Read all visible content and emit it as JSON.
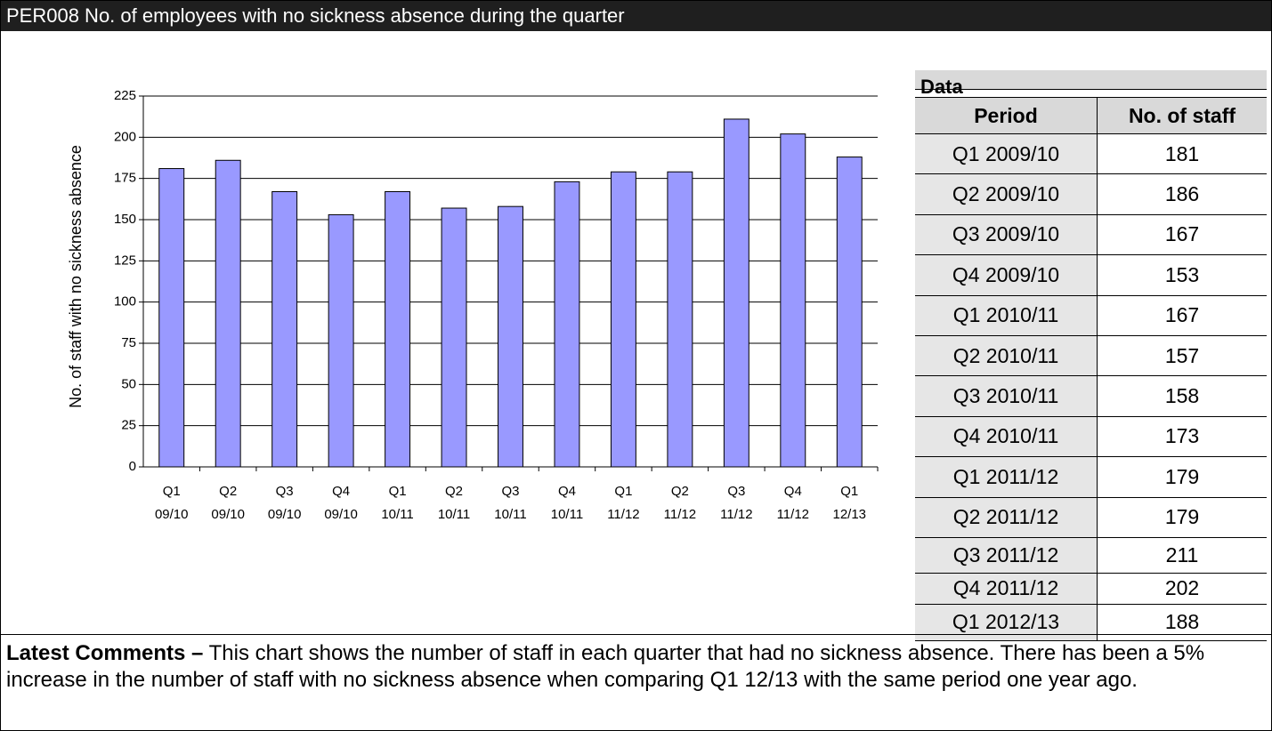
{
  "header": {
    "title": "PER008 No. of employees with no sickness absence during the quarter"
  },
  "chart_data": {
    "type": "bar",
    "y_label": "No. of staff with no sickness absence",
    "categories": [
      "Q1 09/10",
      "Q2 09/10",
      "Q3 09/10",
      "Q4 09/10",
      "Q1 10/11",
      "Q2 10/11",
      "Q3 10/11",
      "Q4 10/11",
      "Q1 11/12",
      "Q2 11/12",
      "Q3 11/12",
      "Q4 11/12",
      "Q1 12/13"
    ],
    "values": [
      181,
      186,
      167,
      153,
      167,
      157,
      158,
      173,
      179,
      179,
      211,
      202,
      188
    ],
    "color": "#9999ff",
    "ylim": [
      0,
      225
    ],
    "yticks": [
      0,
      25,
      50,
      75,
      100,
      125,
      150,
      175,
      200,
      225
    ],
    "grid": true
  },
  "table": {
    "title": "Data",
    "columns": [
      "Period",
      "No. of staff"
    ],
    "rows": [
      [
        "Q1 2009/10",
        "181"
      ],
      [
        "Q2 2009/10",
        "186"
      ],
      [
        "Q3 2009/10",
        "167"
      ],
      [
        "Q4 2009/10",
        "153"
      ],
      [
        "Q1 2010/11",
        "167"
      ],
      [
        "Q2 2010/11",
        "157"
      ],
      [
        "Q3 2010/11",
        "158"
      ],
      [
        "Q4 2010/11",
        "173"
      ],
      [
        "Q1 2011/12",
        "179"
      ],
      [
        "Q2 2011/12",
        "179"
      ],
      [
        "Q3 2011/12",
        "211"
      ],
      [
        "Q4 2011/12",
        "202"
      ],
      [
        "Q1 2012/13",
        "188"
      ]
    ]
  },
  "comments": {
    "label": "Latest Comments –",
    "text": " This chart shows the number of staff in each quarter that had no sickness absence.  There has been a 5% increase in the number of staff with no sickness absence when comparing Q1 12/13 with the same period one year ago."
  }
}
